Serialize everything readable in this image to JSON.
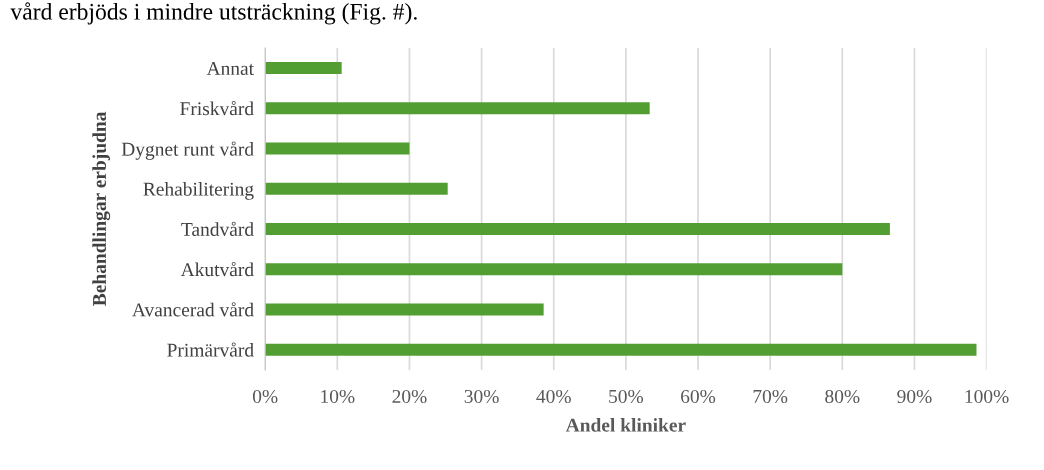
{
  "chart_data": {
    "type": "bar",
    "orientation": "horizontal",
    "xlabel": "Andel kliniker",
    "ylabel": "Behandlingar erbjudna",
    "annotations": [
      "vård erbjöds i mindre utsträckning (Fig. #)."
    ],
    "categories": [
      "Annat",
      "Friskvård",
      "Dygnet runt vård",
      "Rehabilitering",
      "Tandvård",
      "Akutvård",
      "Avancerad vård",
      "Primärvård"
    ],
    "values": [
      10.6,
      53.3,
      20,
      25.3,
      86.6,
      80,
      38.6,
      98.6
    ],
    "color": "#529e32",
    "xlim": [
      0,
      100
    ],
    "xticks": [
      {
        "value": 0,
        "label": "0%"
      },
      {
        "value": 10,
        "label": "10%"
      },
      {
        "value": 20,
        "label": "20%"
      },
      {
        "value": 30,
        "label": "30%"
      },
      {
        "value": 40,
        "label": "40%"
      },
      {
        "value": 50,
        "label": "50%"
      },
      {
        "value": 60,
        "label": "60%"
      },
      {
        "value": 70,
        "label": "70%"
      },
      {
        "value": 80,
        "label": "80%"
      },
      {
        "value": 90,
        "label": "90%"
      },
      {
        "value": 100,
        "label": "100%"
      }
    ],
    "grid": "x"
  }
}
